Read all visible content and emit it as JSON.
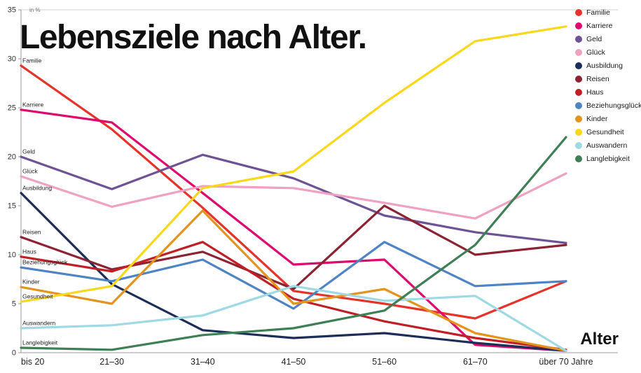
{
  "title": "Lebensziele nach Alter.",
  "chart_data": {
    "type": "line",
    "title": "Lebensziele nach Alter.",
    "xlabel": "Alter",
    "ylabel": "in %",
    "ylim": [
      0,
      35
    ],
    "yticks": [
      0,
      5,
      10,
      15,
      20,
      25,
      30,
      35
    ],
    "grid": false,
    "legend_position": "top-right",
    "categories": [
      "bis 20",
      "21–30",
      "31–40",
      "41–50",
      "51–60",
      "61–70",
      "über 70 Jahre"
    ],
    "series": [
      {
        "name": "Familie",
        "color": "#e6332a",
        "values": [
          29.3,
          22.8,
          14.8,
          6.3,
          5.0,
          3.5,
          7.3
        ]
      },
      {
        "name": "Karriere",
        "color": "#dd0b6e",
        "values": [
          24.8,
          23.5,
          16.3,
          9.0,
          9.5,
          0.8,
          0.2
        ]
      },
      {
        "name": "Geld",
        "color": "#6e5296",
        "values": [
          20.0,
          16.7,
          20.2,
          17.8,
          14.0,
          12.3,
          11.2
        ]
      },
      {
        "name": "Glück",
        "color": "#f0a1c2",
        "values": [
          18.0,
          14.9,
          17.0,
          16.8,
          15.3,
          13.7,
          18.3
        ]
      },
      {
        "name": "Ausbildung",
        "color": "#1d2d5a",
        "values": [
          16.3,
          7.0,
          2.3,
          1.5,
          2.0,
          1.0,
          0.2
        ]
      },
      {
        "name": "Reisen",
        "color": "#8c2332",
        "values": [
          11.8,
          8.5,
          10.3,
          6.5,
          15.0,
          10.0,
          11.0
        ]
      },
      {
        "name": "Haus",
        "color": "#c01f25",
        "values": [
          9.8,
          8.3,
          11.3,
          5.5,
          3.2,
          1.5,
          0.3
        ]
      },
      {
        "name": "Beziehungsglück",
        "color": "#4e84c4",
        "values": [
          8.7,
          7.3,
          9.5,
          4.5,
          11.3,
          6.8,
          7.3
        ]
      },
      {
        "name": "Kinder",
        "color": "#e3941e",
        "values": [
          6.7,
          5.0,
          14.5,
          5.0,
          6.5,
          2.0,
          0.2
        ]
      },
      {
        "name": "Gesundheit",
        "color": "#f8d71c",
        "values": [
          5.2,
          6.8,
          16.8,
          18.5,
          25.5,
          31.8,
          33.3
        ]
      },
      {
        "name": "Auswandern",
        "color": "#9fd9e3",
        "values": [
          2.5,
          2.8,
          3.8,
          6.8,
          5.3,
          5.8,
          0.2
        ]
      },
      {
        "name": "Langlebigkeit",
        "color": "#3f7f55",
        "values": [
          0.5,
          0.3,
          1.8,
          2.5,
          4.3,
          11.0,
          22.0
        ]
      }
    ]
  }
}
